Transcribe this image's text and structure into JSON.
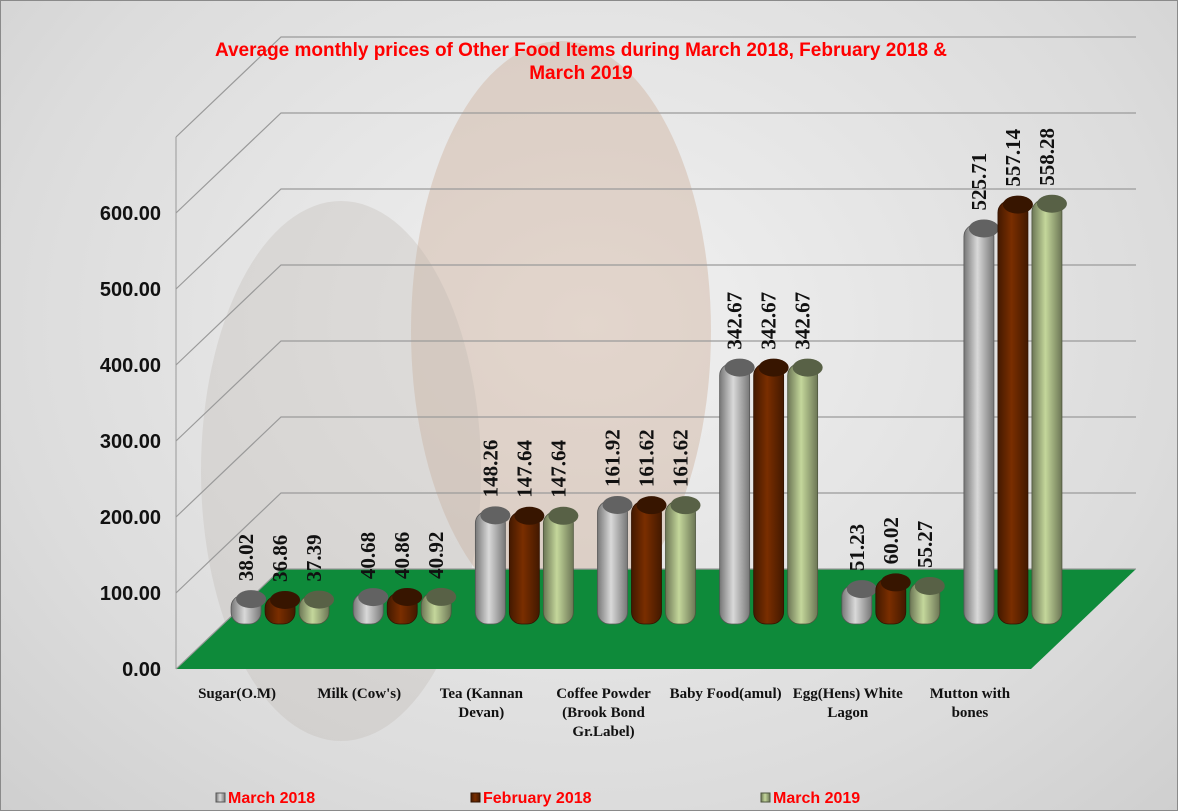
{
  "chart_data": {
    "type": "bar3d",
    "title": "Average monthly prices of Other Food Items during March  2018, February 2018 & March  2019",
    "categories": [
      "Sugar(O.M)",
      "Milk (Cow's)",
      "Tea (Kannan Devan)",
      "Coffee Powder (Brook Bond Gr.Label)",
      "Baby Food(amul)",
      "Egg(Hens) White Lagon",
      "Mutton with bones"
    ],
    "series": [
      {
        "name": "March 2018",
        "color": "#d9d9d9",
        "values": [
          38.02,
          40.68,
          148.26,
          161.92,
          342.67,
          51.23,
          525.71
        ]
      },
      {
        "name": "February  2018",
        "color": "#7a2e00",
        "values": [
          36.86,
          40.86,
          147.64,
          161.62,
          342.67,
          60.02,
          557.14
        ]
      },
      {
        "name": "March 2019",
        "color": "#c4d79b",
        "values": [
          37.39,
          40.92,
          147.64,
          161.62,
          342.67,
          55.27,
          558.28
        ]
      }
    ],
    "ylim": [
      0,
      700
    ],
    "yticks": [
      {
        "value": 0,
        "label": "0.00"
      },
      {
        "value": 100,
        "label": "100.00"
      },
      {
        "value": 200,
        "label": "200.00"
      },
      {
        "value": 300,
        "label": "300.00"
      },
      {
        "value": 400,
        "label": "400.00"
      },
      {
        "value": 500,
        "label": "500.00"
      },
      {
        "value": 600,
        "label": "600.00"
      },
      700
    ],
    "grid": true,
    "floor_color": "#0e8a3a",
    "legend": "bottom"
  }
}
